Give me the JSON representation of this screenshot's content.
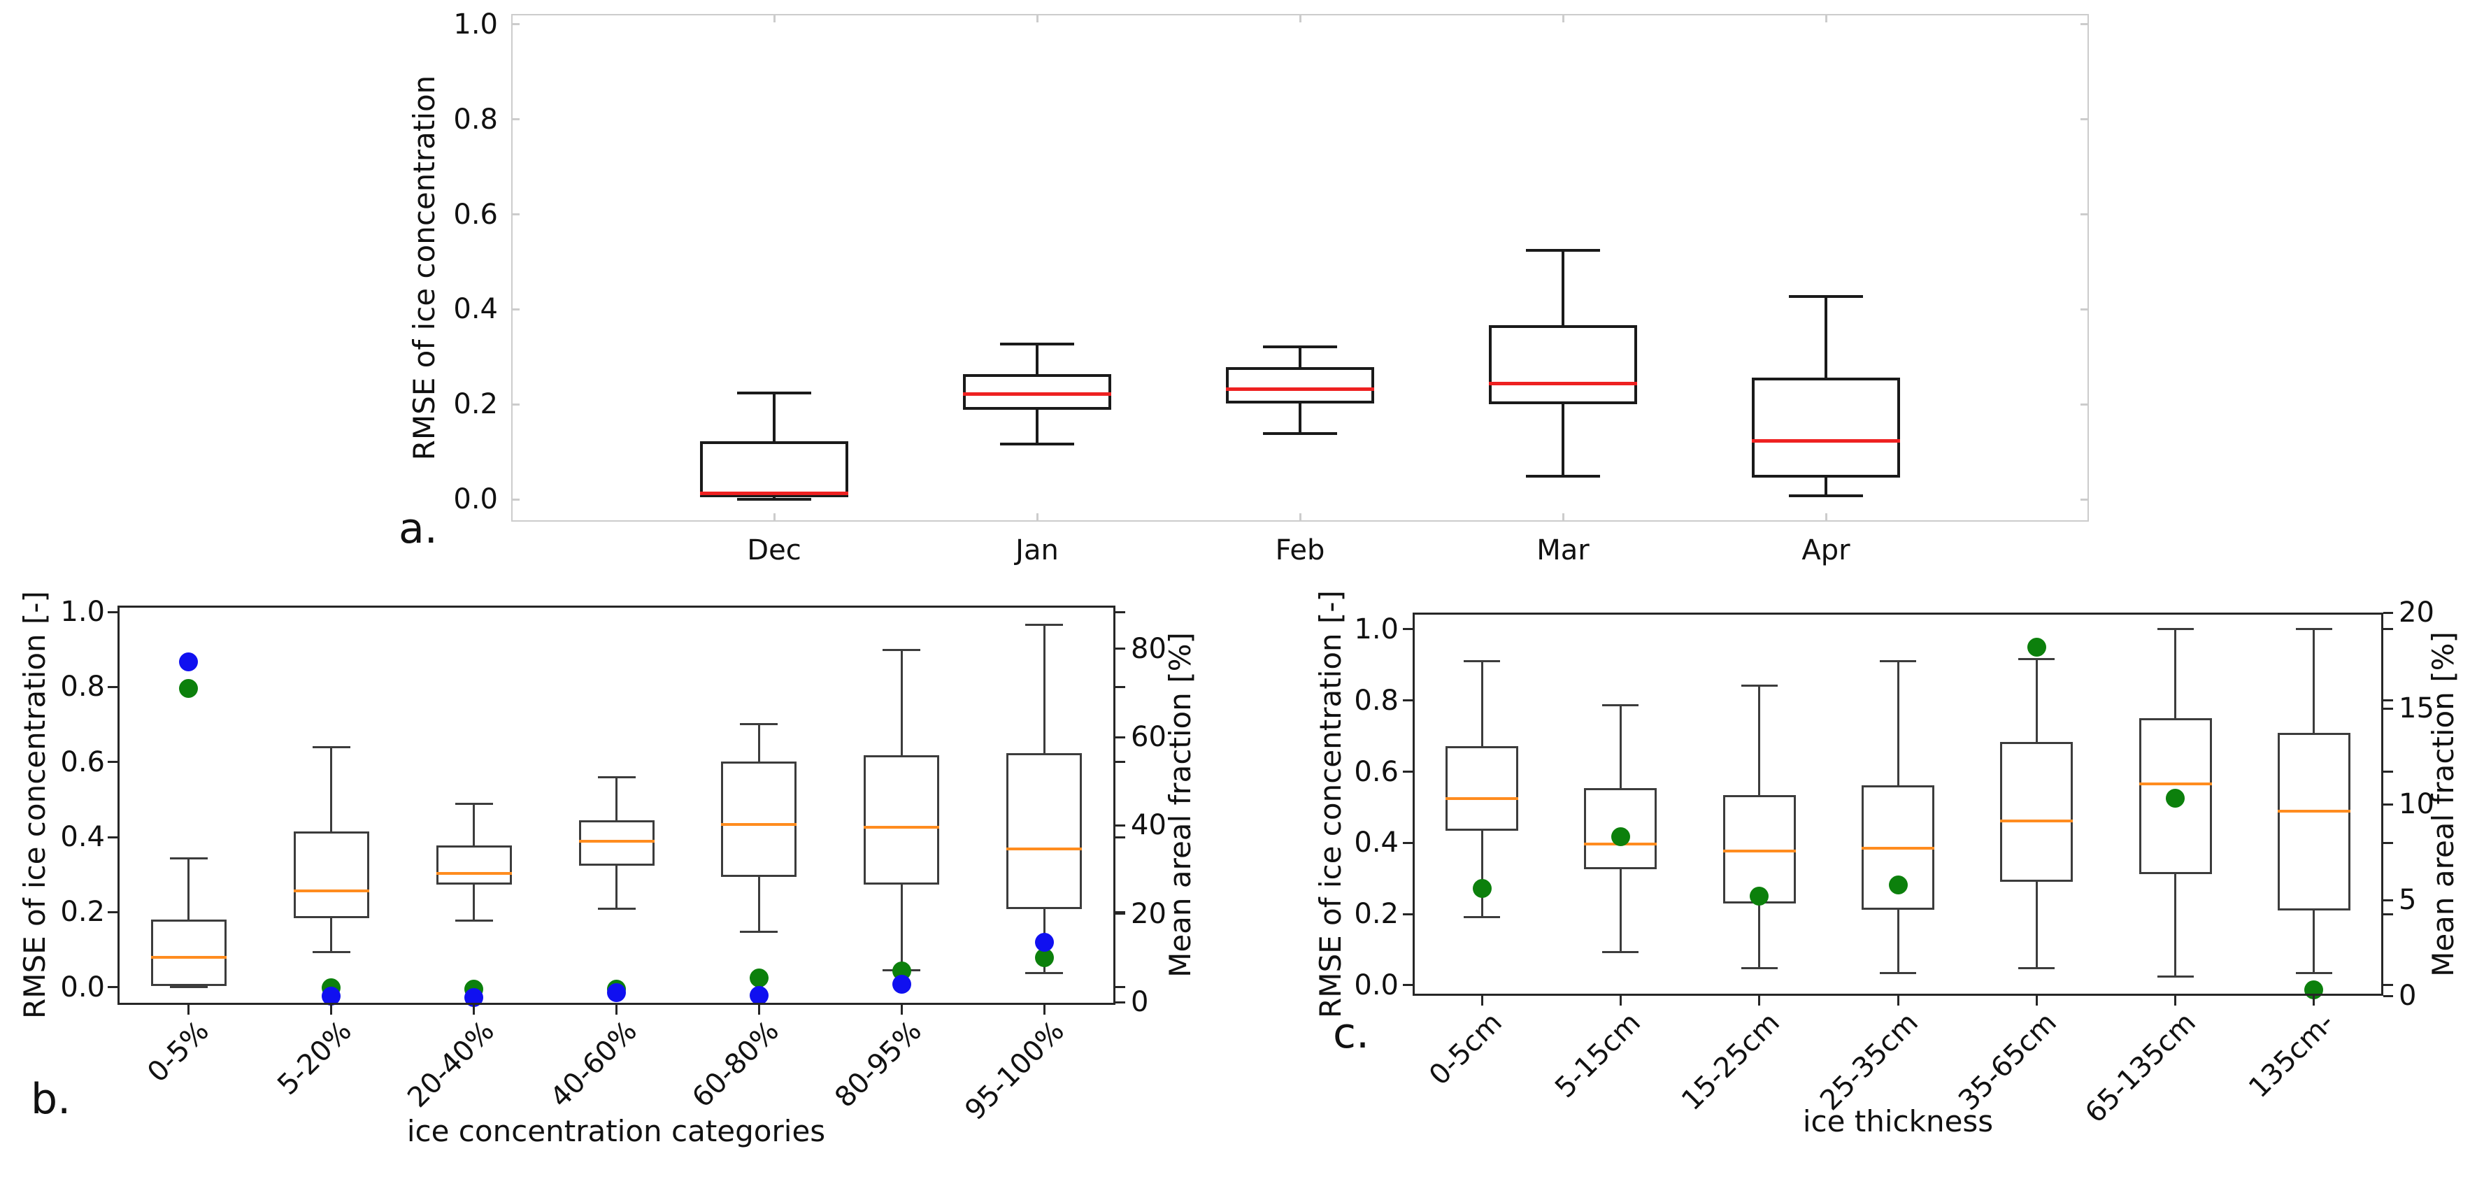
{
  "chart_data": [
    {
      "panel_label": "a.",
      "type": "box",
      "ylabel": "RMSE of ice concentration",
      "categories": [
        "Dec",
        "Jan",
        "Feb",
        "Mar",
        "Apr"
      ],
      "ytick_labels": [
        "1.0",
        "0.8",
        "0.6",
        "0.4",
        "0.2",
        "0.0"
      ],
      "ytick_values": [
        1.0,
        0.8,
        0.6,
        0.4,
        0.2,
        0.0
      ],
      "ylim_left": [
        -0.047,
        1.022
      ],
      "grid": false,
      "spine_color": "#cccccc",
      "box_edge_color": "#1a1a1a",
      "median_color": "#ee2121",
      "boxes": [
        {
          "whislo": 0.0,
          "q1": 0.005,
          "med": 0.013,
          "q3": 0.123,
          "whishi": 0.224
        },
        {
          "whislo": 0.117,
          "q1": 0.189,
          "med": 0.222,
          "q3": 0.263,
          "whishi": 0.327
        },
        {
          "whislo": 0.139,
          "q1": 0.202,
          "med": 0.232,
          "q3": 0.278,
          "whishi": 0.321
        },
        {
          "whislo": 0.049,
          "q1": 0.2,
          "med": 0.244,
          "q3": 0.367,
          "whishi": 0.524
        },
        {
          "whislo": 0.008,
          "q1": 0.046,
          "med": 0.123,
          "q3": 0.256,
          "whishi": 0.427
        }
      ]
    },
    {
      "panel_label": "b.",
      "type": "box+scatter",
      "ylabel_left": "RMSE of ice concentration [-]",
      "ylabel_right": "Mean areal fraction [%]",
      "xlabel": "ice concentration categories",
      "categories": [
        "0-5%",
        "5-20%",
        "20-40%",
        "40-60%",
        "60-80%",
        "80-95%",
        "95-100%"
      ],
      "ytick_labels_left": [
        "1.0",
        "0.8",
        "0.6",
        "0.4",
        "0.2",
        "0.0"
      ],
      "ytick_values_left": [
        1.0,
        0.8,
        0.6,
        0.4,
        0.2,
        0.0
      ],
      "ytick_labels_right": [
        "80",
        "60",
        "40",
        "20",
        "0"
      ],
      "ytick_values_right": [
        80,
        60,
        40,
        20,
        0
      ],
      "ylim_left": [
        -0.047,
        1.017
      ],
      "ylim_right": [
        -0.63,
        89.8
      ],
      "grid": false,
      "spine_color": "#262626",
      "box_edge_color": "#3c3c3c",
      "median_color": "#ff8c1f",
      "boxes": [
        {
          "whislo": 0.0,
          "q1": 0.004,
          "med": 0.08,
          "q3": 0.181,
          "whishi": 0.344
        },
        {
          "whislo": 0.093,
          "q1": 0.184,
          "med": 0.257,
          "q3": 0.415,
          "whishi": 0.639
        },
        {
          "whislo": 0.177,
          "q1": 0.274,
          "med": 0.304,
          "q3": 0.378,
          "whishi": 0.488
        },
        {
          "whislo": 0.21,
          "q1": 0.324,
          "med": 0.389,
          "q3": 0.445,
          "whishi": 0.559
        },
        {
          "whislo": 0.148,
          "q1": 0.294,
          "med": 0.434,
          "q3": 0.601,
          "whishi": 0.702
        },
        {
          "whislo": 0.045,
          "q1": 0.274,
          "med": 0.426,
          "q3": 0.618,
          "whishi": 0.898
        },
        {
          "whislo": 0.038,
          "q1": 0.209,
          "med": 0.369,
          "q3": 0.624,
          "whishi": 0.966
        }
      ],
      "scatter": [
        {
          "name": "green-dots",
          "color": "#0c800c",
          "axis": "right",
          "values": [
            71,
            3.3,
            3.0,
            2.9,
            5.5,
            7.0,
            10.0
          ]
        },
        {
          "name": "blue-dots",
          "color": "#1010f0",
          "axis": "right",
          "values": [
            77,
            1.3,
            1.0,
            2.2,
            1.5,
            4.0,
            13.5
          ]
        }
      ]
    },
    {
      "panel_label": "c.",
      "type": "box+scatter",
      "ylabel_left": "RMSE of ice concentration [-]",
      "ylabel_right": "Mean areal fraction [%]",
      "xlabel": "ice thickness",
      "categories": [
        "0-5cm",
        "5-15cm",
        "15-25cm",
        "25-35cm",
        "35-65cm",
        "65-135cm",
        "135cm-"
      ],
      "ytick_labels_left": [
        "1.0",
        "0.8",
        "0.6",
        "0.4",
        "0.2",
        "0.0"
      ],
      "ytick_values_left": [
        1.0,
        0.8,
        0.6,
        0.4,
        0.2,
        0.0
      ],
      "ytick_labels_right": [
        "20",
        "15",
        "10",
        "5",
        "0"
      ],
      "ytick_values_right": [
        20,
        15,
        10,
        5,
        0
      ],
      "ylim_left": [
        -0.0295,
        1.047
      ],
      "ylim_right": [
        0,
        20
      ],
      "grid": false,
      "spine_color": "#262626",
      "box_edge_color": "#3c3c3c",
      "median_color": "#ff8c1f",
      "boxes": [
        {
          "whislo": 0.191,
          "q1": 0.434,
          "med": 0.525,
          "q3": 0.672,
          "whishi": 0.91
        },
        {
          "whislo": 0.094,
          "q1": 0.326,
          "med": 0.397,
          "q3": 0.554,
          "whishi": 0.786
        },
        {
          "whislo": 0.049,
          "q1": 0.23,
          "med": 0.377,
          "q3": 0.534,
          "whishi": 0.841
        },
        {
          "whislo": 0.035,
          "q1": 0.212,
          "med": 0.385,
          "q3": 0.562,
          "whishi": 0.91
        },
        {
          "whislo": 0.049,
          "q1": 0.291,
          "med": 0.462,
          "q3": 0.684,
          "whishi": 0.916
        },
        {
          "whislo": 0.024,
          "q1": 0.313,
          "med": 0.565,
          "q3": 0.75,
          "whishi": 1.0
        },
        {
          "whislo": 0.035,
          "q1": 0.21,
          "med": 0.49,
          "q3": 0.71,
          "whishi": 1.0
        }
      ],
      "scatter": [
        {
          "name": "green-dots",
          "color": "#0c800c",
          "axis": "right",
          "values": [
            5.6,
            8.3,
            5.2,
            5.8,
            18.2,
            10.3,
            0.3
          ]
        }
      ]
    }
  ]
}
